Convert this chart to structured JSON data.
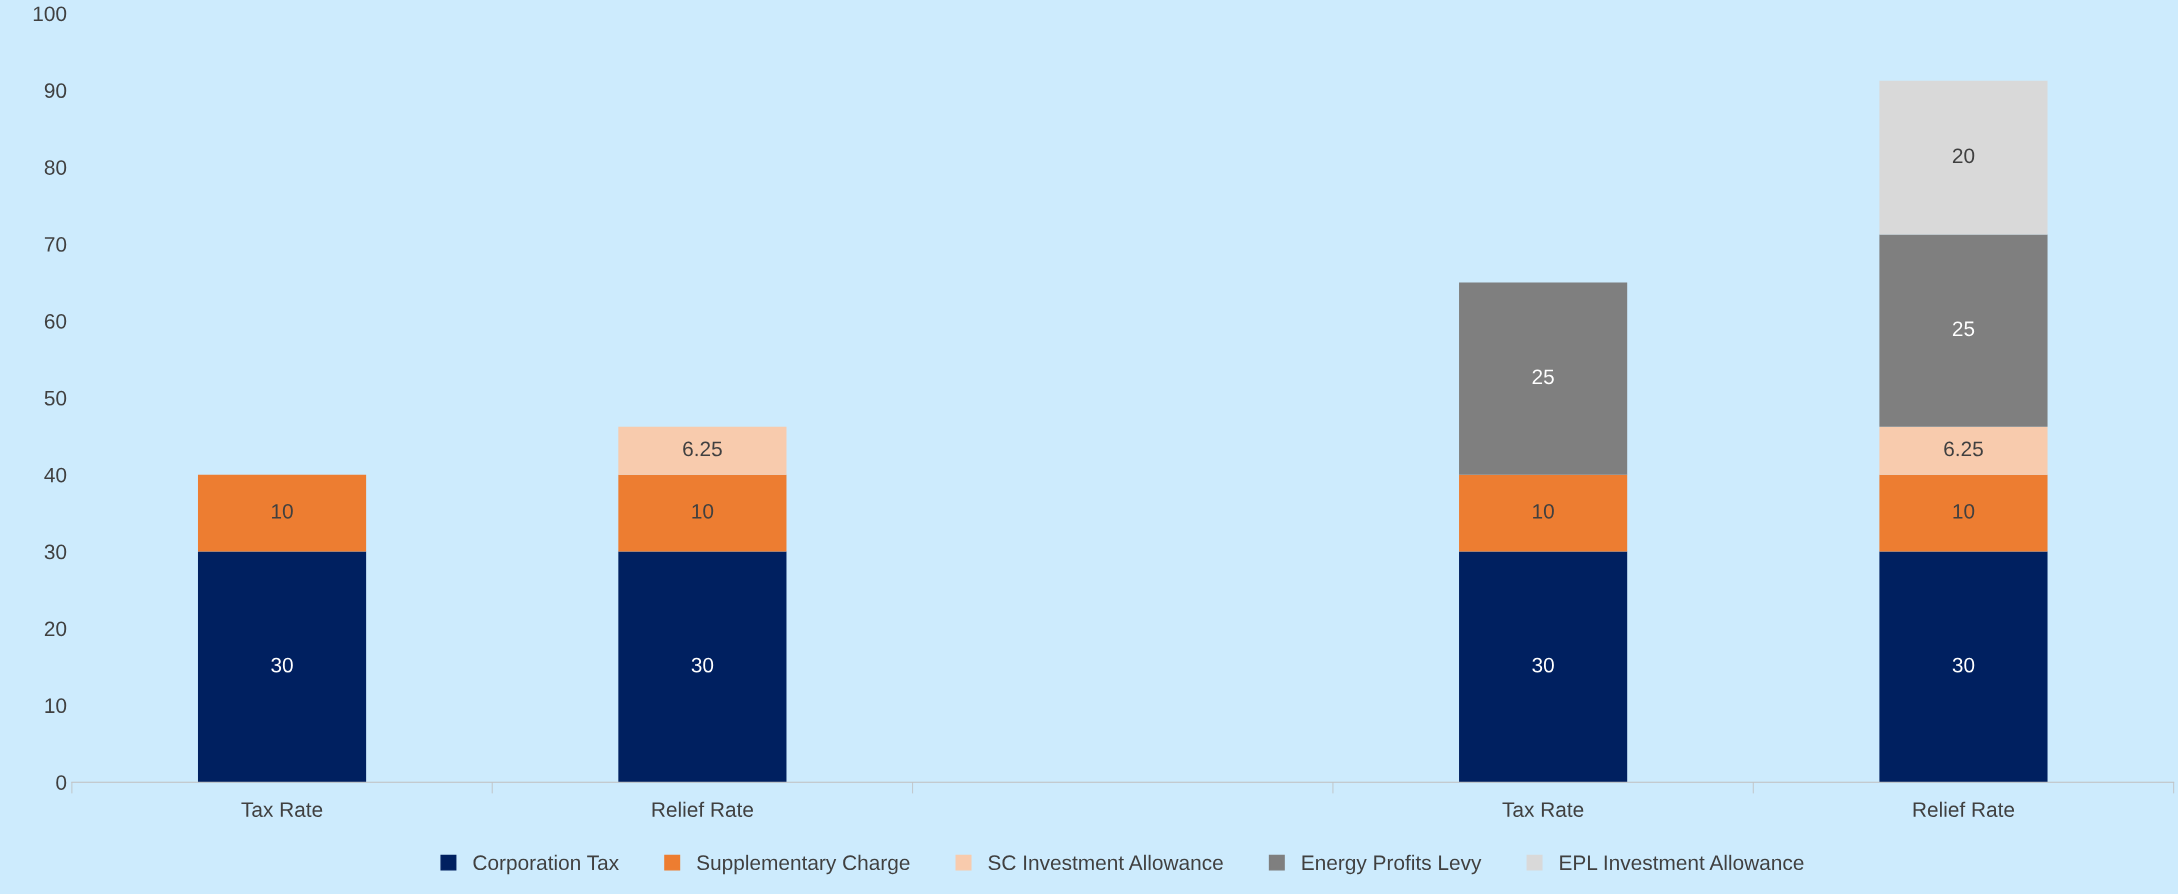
{
  "chart_data": {
    "type": "bar",
    "stacked": true,
    "categories": [
      "Tax Rate",
      "Relief Rate",
      null,
      "Tax Rate",
      "Relief Rate"
    ],
    "series": [
      {
        "name": "Corporation Tax",
        "color": "#002060",
        "values": [
          30,
          30,
          null,
          30,
          30
        ]
      },
      {
        "name": "Supplementary Charge",
        "color": "#ed7d31",
        "values": [
          10,
          10,
          null,
          10,
          10
        ]
      },
      {
        "name": "SC Investment Allowance",
        "color": "#f8cbad",
        "values": [
          null,
          6.25,
          null,
          null,
          6.25
        ]
      },
      {
        "name": "Energy Profits Levy",
        "color": "#7f7f7f",
        "values": [
          null,
          null,
          null,
          25,
          25
        ]
      },
      {
        "name": "EPL Investment Allowance",
        "color": "#d9d9d9",
        "values": [
          null,
          null,
          null,
          null,
          20
        ]
      }
    ],
    "ylim": [
      0,
      100
    ],
    "yticks": [
      0,
      10,
      20,
      30,
      40,
      50,
      60,
      70,
      80,
      90,
      100
    ],
    "grid": false,
    "legend": "bottom",
    "data_labels": true
  }
}
